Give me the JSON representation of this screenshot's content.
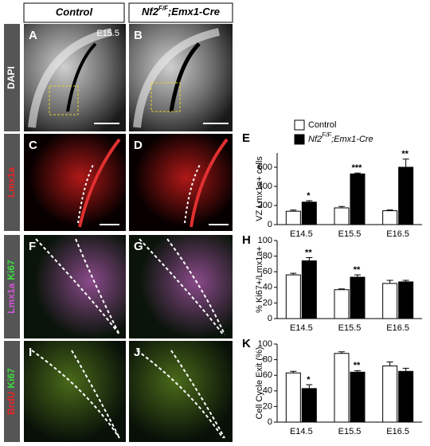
{
  "header": {
    "control": "Control",
    "mutant": {
      "gene": "Nf2",
      "superscript": "F/F",
      "suffix": ";Emx1-Cre"
    }
  },
  "row_labels": [
    [
      {
        "text": "DAPI",
        "color": "#ffffff"
      }
    ],
    [
      {
        "text": "Lmx1a",
        "color": "#e8262a"
      }
    ],
    [
      {
        "text": "Lmx1a",
        "color": "#d455d6"
      },
      {
        "text": "Ki67",
        "color": "#3ddc3d"
      }
    ],
    [
      {
        "text": "BrdU",
        "color": "#e8262a"
      },
      {
        "text": "Ki67",
        "color": "#3ddc3d"
      }
    ]
  ],
  "panels": [
    "A",
    "B",
    "C",
    "D",
    "F",
    "G",
    "I",
    "J"
  ],
  "stage_label": "E15.5",
  "chart_data": [
    {
      "type": "bar",
      "panel": "E",
      "ylabel": "VZ Lmx1a+ cells",
      "categories": [
        "E14.5",
        "E15.5",
        "E16.5"
      ],
      "series": [
        {
          "name": "Control",
          "color": "#ffffff",
          "values": [
            140,
            175,
            145
          ],
          "errors": [
            12,
            15,
            8
          ]
        },
        {
          "name": "Nf2",
          "name_superscript": "F/F",
          "name_suffix": ";Emx1-Cre",
          "color": "#000000",
          "values": [
            235,
            530,
            600
          ],
          "errors": [
            15,
            10,
            85
          ]
        }
      ],
      "annotations": [
        "*",
        "***",
        "**"
      ],
      "ylim": [
        0,
        750
      ],
      "yticks": [
        0,
        200,
        400,
        600
      ]
    },
    {
      "type": "bar",
      "panel": "H",
      "ylabel": "% Ki67+/Lmx1a+",
      "categories": [
        "E14.5",
        "E15.5",
        "E16.5"
      ],
      "series": [
        {
          "color": "#ffffff",
          "values": [
            56,
            37,
            45
          ],
          "errors": [
            2,
            1,
            4
          ]
        },
        {
          "color": "#000000",
          "values": [
            74,
            53,
            47
          ],
          "errors": [
            4,
            3,
            2
          ]
        }
      ],
      "annotations": [
        "**",
        "**",
        null
      ],
      "ylim": [
        0,
        100
      ],
      "yticks": [
        0,
        20,
        40,
        60,
        80,
        100
      ]
    },
    {
      "type": "bar",
      "panel": "K",
      "ylabel": "Cell Cycle Exit (%)",
      "categories": [
        "E14.5",
        "E15.5",
        "E16.5"
      ],
      "series": [
        {
          "color": "#ffffff",
          "values": [
            63,
            88,
            72
          ],
          "errors": [
            2,
            2,
            5
          ]
        },
        {
          "color": "#000000",
          "values": [
            43,
            64,
            65
          ],
          "errors": [
            5,
            2,
            4
          ]
        }
      ],
      "annotations": [
        "*",
        "**",
        null
      ],
      "ylim": [
        0,
        100
      ],
      "yticks": [
        0,
        20,
        40,
        60,
        80,
        100
      ]
    }
  ]
}
